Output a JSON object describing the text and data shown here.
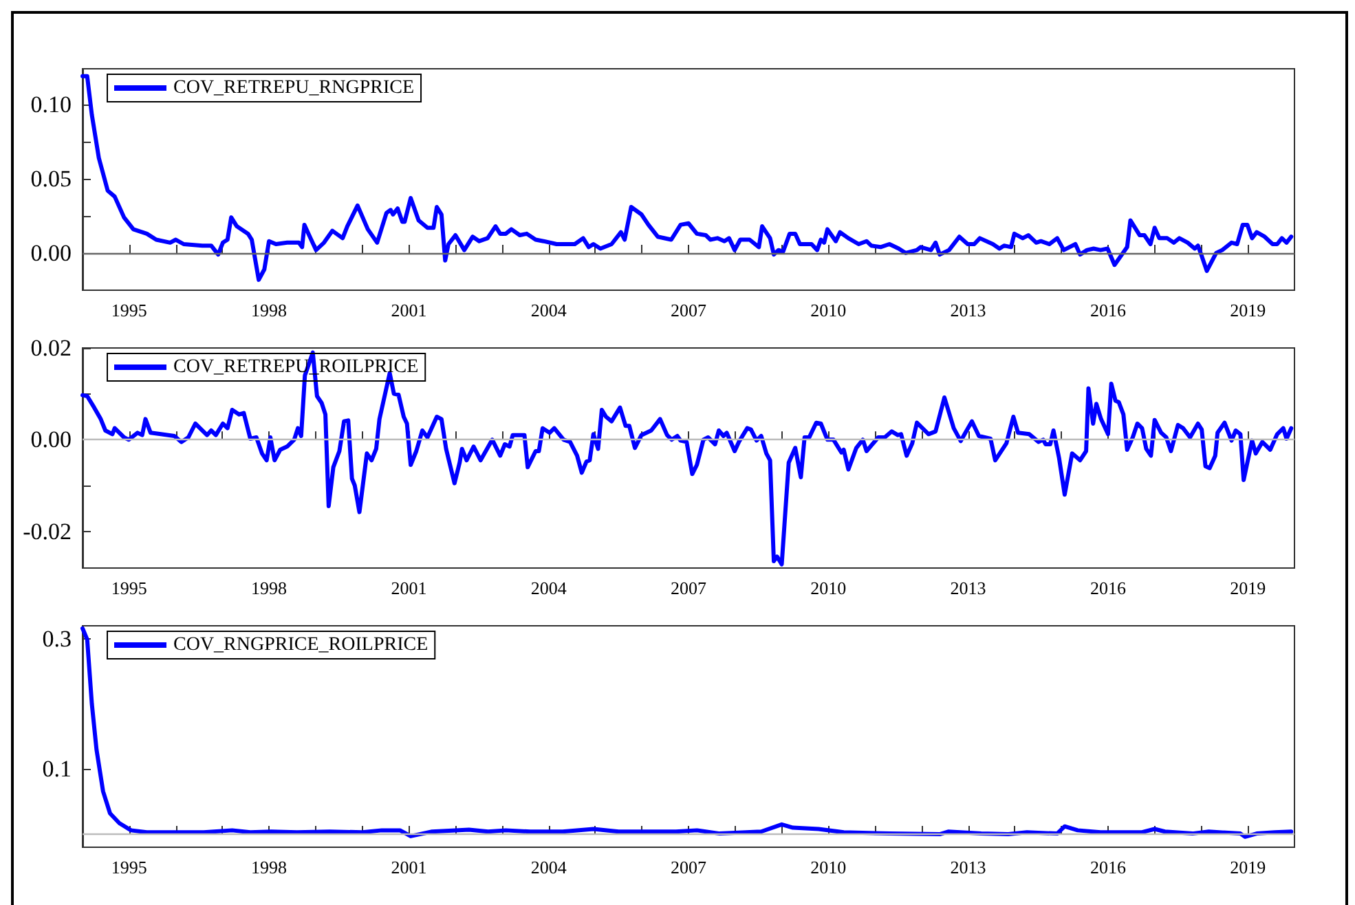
{
  "chart_data": [
    {
      "type": "line",
      "legend": "top left",
      "grid": false,
      "xlim": [
        1994,
        2020
      ],
      "ylim": [
        -0.025,
        0.124
      ],
      "xticks": [
        1995,
        {
          "value": 1996,
          "label": null
        },
        {
          "value": 1997,
          "label": null
        },
        1998,
        {
          "value": 1999,
          "label": null
        },
        {
          "value": 2000,
          "label": null
        },
        2001,
        {
          "value": 2002,
          "label": null
        },
        {
          "value": 2003,
          "label": null
        },
        2004,
        {
          "value": 2005,
          "label": null
        },
        {
          "value": 2006,
          "label": null
        },
        2007,
        {
          "value": 2008,
          "label": null
        },
        {
          "value": 2009,
          "label": null
        },
        2010,
        {
          "value": 2011,
          "label": null
        },
        {
          "value": 2012,
          "label": null
        },
        2013,
        {
          "value": 2014,
          "label": null
        },
        {
          "value": 2015,
          "label": null
        },
        2016,
        {
          "value": 2017,
          "label": null
        },
        {
          "value": 2018,
          "label": null
        },
        2019
      ],
      "yticks": [
        {
          "value": 0,
          "label": "0.00"
        },
        {
          "value": 0.025,
          "label": null
        },
        {
          "value": 0.05,
          "label": "0.05"
        },
        {
          "value": 0.075,
          "label": null
        },
        {
          "value": 0.1,
          "label": "0.10"
        }
      ],
      "ref_lines": [
        {
          "axis": "y",
          "value": 0,
          "color": "#666666"
        }
      ],
      "series": [
        {
          "name": "COV_RETREPU_RNGPRICE",
          "color": "#0000ff",
          "x": [
            1994.0,
            1994.1,
            1994.2,
            1994.35,
            1994.54,
            1994.69,
            1994.89,
            1995.09,
            1995.38,
            1995.58,
            1995.88,
            1996.0,
            1996.17,
            1996.57,
            1996.76,
            1996.91,
            1997.01,
            1997.11,
            1997.19,
            1997.31,
            1997.55,
            1997.63,
            1997.78,
            1997.9,
            1998.0,
            1998.15,
            1998.39,
            1998.64,
            1998.71,
            1998.76,
            1998.89,
            1999.01,
            1999.18,
            1999.36,
            1999.58,
            1999.68,
            1999.9,
            2000.12,
            2000.32,
            2000.52,
            2000.61,
            2000.66,
            2000.76,
            2000.86,
            2000.91,
            2001.04,
            2001.21,
            2001.4,
            2001.53,
            2001.6,
            2001.7,
            2001.78,
            2001.85,
            2002.0,
            2002.19,
            2002.37,
            2002.51,
            2002.69,
            2002.86,
            2002.96,
            2003.08,
            2003.2,
            2003.38,
            2003.53,
            2003.72,
            2003.89,
            2004.17,
            2004.56,
            2004.74,
            2004.86,
            2004.96,
            2005.11,
            2005.35,
            2005.55,
            2005.63,
            2005.77,
            2005.99,
            2006.14,
            2006.34,
            2006.63,
            2006.83,
            2007.0,
            2007.18,
            2007.37,
            2007.47,
            2007.62,
            2007.77,
            2007.87,
            2007.99,
            2008.11,
            2008.31,
            2008.51,
            2008.58,
            2008.75,
            2008.83,
            2008.93,
            2009.03,
            2009.17,
            2009.29,
            2009.39,
            2009.64,
            2009.76,
            2009.84,
            2009.91,
            2009.98,
            2010.16,
            2010.25,
            2010.43,
            2010.65,
            2010.82,
            2010.92,
            2011.12,
            2011.31,
            2011.51,
            2011.66,
            2011.9,
            2011.98,
            2012.2,
            2012.3,
            2012.39,
            2012.59,
            2012.81,
            2012.99,
            2013.13,
            2013.25,
            2013.53,
            2013.67,
            2013.77,
            2013.92,
            2013.99,
            2014.17,
            2014.29,
            2014.46,
            2014.56,
            2014.74,
            2014.91,
            2015.05,
            2015.3,
            2015.4,
            2015.55,
            2015.69,
            2015.84,
            2015.99,
            2016.14,
            2016.41,
            2016.48,
            2016.68,
            2016.78,
            2016.91,
            2017.0,
            2017.1,
            2017.27,
            2017.41,
            2017.53,
            2017.71,
            2017.86,
            2017.93,
            2018.01,
            2018.12,
            2018.32,
            2018.45,
            2018.65,
            2018.77,
            2018.89,
            2018.99,
            2019.09,
            2019.19,
            2019.36,
            2019.53,
            2019.63,
            2019.73,
            2019.83,
            2019.93
          ],
          "values": [
            0.119,
            0.119,
            0.093,
            0.064,
            0.042,
            0.038,
            0.024,
            0.016,
            0.013,
            0.009,
            0.007,
            0.009,
            0.006,
            0.005,
            0.005,
            -0.001,
            0.007,
            0.009,
            0.024,
            0.018,
            0.013,
            0.009,
            -0.018,
            -0.011,
            0.008,
            0.006,
            0.007,
            0.007,
            0.004,
            0.019,
            0.01,
            0.002,
            0.007,
            0.015,
            0.01,
            0.018,
            0.032,
            0.016,
            0.007,
            0.027,
            0.029,
            0.026,
            0.03,
            0.021,
            0.021,
            0.037,
            0.022,
            0.017,
            0.017,
            0.031,
            0.026,
            -0.005,
            0.006,
            0.012,
            0.002,
            0.011,
            0.008,
            0.01,
            0.018,
            0.013,
            0.013,
            0.016,
            0.012,
            0.013,
            0.009,
            0.008,
            0.006,
            0.006,
            0.01,
            0.004,
            0.006,
            0.003,
            0.006,
            0.014,
            0.009,
            0.031,
            0.026,
            0.019,
            0.011,
            0.009,
            0.019,
            0.02,
            0.013,
            0.012,
            0.009,
            0.01,
            0.008,
            0.01,
            0.002,
            0.009,
            0.009,
            0.004,
            0.018,
            0.01,
            -0.001,
            0.002,
            0.001,
            0.013,
            0.013,
            0.006,
            0.006,
            0.002,
            0.009,
            0.007,
            0.016,
            0.008,
            0.014,
            0.01,
            0.006,
            0.008,
            0.005,
            0.004,
            0.006,
            0.003,
            0.0,
            0.002,
            0.004,
            0.002,
            0.007,
            -0.001,
            0.002,
            0.011,
            0.006,
            0.006,
            0.01,
            0.006,
            0.003,
            0.005,
            0.004,
            0.013,
            0.01,
            0.012,
            0.007,
            0.008,
            0.006,
            0.01,
            0.002,
            0.006,
            -0.001,
            0.002,
            0.003,
            0.002,
            0.003,
            -0.008,
            0.004,
            0.022,
            0.012,
            0.012,
            0.006,
            0.017,
            0.01,
            0.01,
            0.007,
            0.01,
            0.007,
            0.003,
            0.005,
            -0.002,
            -0.012,
            0.0,
            0.002,
            0.007,
            0.006,
            0.019,
            0.019,
            0.01,
            0.014,
            0.011,
            0.006,
            0.006,
            0.01,
            0.007,
            0.011
          ]
        }
      ]
    },
    {
      "type": "line",
      "legend": "top left",
      "grid": false,
      "xlim": [
        1994,
        2020
      ],
      "ylim": [
        -0.028,
        0.02
      ],
      "xticks": [
        1995,
        {
          "value": 1996,
          "label": null
        },
        {
          "value": 1997,
          "label": null
        },
        1998,
        {
          "value": 1999,
          "label": null
        },
        {
          "value": 2000,
          "label": null
        },
        2001,
        {
          "value": 2002,
          "label": null
        },
        {
          "value": 2003,
          "label": null
        },
        2004,
        {
          "value": 2005,
          "label": null
        },
        {
          "value": 2006,
          "label": null
        },
        2007,
        {
          "value": 2008,
          "label": null
        },
        {
          "value": 2009,
          "label": null
        },
        2010,
        {
          "value": 2011,
          "label": null
        },
        {
          "value": 2012,
          "label": null
        },
        2013,
        {
          "value": 2014,
          "label": null
        },
        {
          "value": 2015,
          "label": null
        },
        2016,
        {
          "value": 2017,
          "label": null
        },
        {
          "value": 2018,
          "label": null
        },
        2019
      ],
      "yticks": [
        {
          "value": -0.02,
          "label": "-0.02"
        },
        {
          "value": -0.01,
          "label": null
        },
        {
          "value": 0,
          "label": "0.00"
        },
        {
          "value": 0.01,
          "label": null
        },
        {
          "value": 0.02,
          "label": "0.02"
        }
      ],
      "ref_lines": [
        {
          "axis": "y",
          "value": 0,
          "color": "#bbbbbb"
        }
      ],
      "series": [
        {
          "name": "COV_RETREPU_ROILPRICE",
          "color": "#0000ff",
          "x": [
            1994.0,
            1994.1,
            1994.25,
            1994.39,
            1994.49,
            1994.64,
            1994.69,
            1994.89,
            1994.99,
            1995.18,
            1995.28,
            1995.35,
            1995.46,
            1995.68,
            1995.97,
            1996.12,
            1996.27,
            1996.42,
            1996.67,
            1996.76,
            1996.86,
            1997.01,
            1997.11,
            1997.21,
            1997.36,
            1997.46,
            1997.6,
            1997.73,
            1997.85,
            1997.95,
            1998.03,
            1998.12,
            1998.24,
            1998.39,
            1998.54,
            1998.62,
            1998.69,
            1998.77,
            1998.94,
            1999.03,
            1999.13,
            1999.21,
            1999.28,
            1999.38,
            1999.51,
            1999.61,
            1999.7,
            1999.78,
            1999.84,
            1999.94,
            2000.1,
            2000.2,
            2000.3,
            2000.37,
            2000.59,
            2000.68,
            2000.78,
            2000.89,
            2000.96,
            2001.04,
            2001.16,
            2001.29,
            2001.4,
            2001.6,
            2001.7,
            2001.8,
            2001.98,
            2002.09,
            2002.14,
            2002.24,
            2002.39,
            2002.54,
            2002.79,
            2002.96,
            2003.06,
            2003.16,
            2003.23,
            2003.48,
            2003.55,
            2003.72,
            2003.79,
            2003.87,
            2004.02,
            2004.12,
            2004.32,
            2004.46,
            2004.61,
            2004.71,
            2004.81,
            2004.88,
            2004.96,
            2005.06,
            2005.14,
            2005.23,
            2005.35,
            2005.53,
            2005.65,
            2005.73,
            2005.85,
            2005.99,
            2006.2,
            2006.39,
            2006.54,
            2006.64,
            2006.76,
            2006.83,
            2006.96,
            2007.08,
            2007.18,
            2007.32,
            2007.42,
            2007.57,
            2007.65,
            2007.75,
            2007.82,
            2007.99,
            2008.08,
            2008.26,
            2008.34,
            2008.46,
            2008.56,
            2008.67,
            2008.75,
            2008.83,
            2008.9,
            2009.0,
            2009.15,
            2009.29,
            2009.41,
            2009.49,
            2009.59,
            2009.74,
            2009.84,
            2009.98,
            2010.11,
            2010.28,
            2010.33,
            2010.43,
            2010.6,
            2010.74,
            2010.82,
            2011.07,
            2011.21,
            2011.36,
            2011.49,
            2011.56,
            2011.68,
            2011.8,
            2011.9,
            2012.15,
            2012.3,
            2012.49,
            2012.69,
            2012.84,
            2012.94,
            2013.08,
            2013.23,
            2013.48,
            2013.58,
            2013.82,
            2013.97,
            2014.07,
            2014.31,
            2014.51,
            2014.61,
            2014.66,
            2014.76,
            2014.83,
            2014.95,
            2015.07,
            2015.23,
            2015.4,
            2015.53,
            2015.58,
            2015.68,
            2015.75,
            2015.85,
            2016.0,
            2016.07,
            2016.16,
            2016.23,
            2016.33,
            2016.41,
            2016.53,
            2016.63,
            2016.73,
            2016.82,
            2016.92,
            2017.0,
            2017.14,
            2017.25,
            2017.35,
            2017.5,
            2017.61,
            2017.76,
            2017.93,
            2018.01,
            2018.09,
            2018.18,
            2018.3,
            2018.35,
            2018.5,
            2018.65,
            2018.74,
            2018.84,
            2018.91,
            2019.09,
            2019.17,
            2019.31,
            2019.48,
            2019.63,
            2019.76,
            2019.83,
            2019.93
          ],
          "values": [
            0.0097,
            0.0095,
            0.007,
            0.0045,
            0.002,
            0.0012,
            0.0025,
            0.0005,
            0.0,
            0.0015,
            0.001,
            0.0045,
            0.0015,
            0.0012,
            0.0008,
            -0.0005,
            0.0005,
            0.0035,
            0.001,
            0.002,
            0.001,
            0.0035,
            0.0025,
            0.0065,
            0.0055,
            0.0058,
            0.0002,
            0.0005,
            -0.003,
            -0.0045,
            0.0005,
            -0.0045,
            -0.0022,
            -0.0015,
            0.0,
            0.0025,
            0.0008,
            0.014,
            0.019,
            0.0095,
            0.008,
            0.0055,
            -0.0145,
            -0.006,
            -0.0025,
            0.004,
            0.0042,
            -0.0085,
            -0.01,
            -0.0158,
            -0.003,
            -0.0045,
            -0.002,
            0.0045,
            0.0145,
            0.01,
            0.0098,
            0.005,
            0.0035,
            -0.0055,
            -0.0025,
            0.002,
            0.0005,
            0.005,
            0.0045,
            -0.002,
            -0.0095,
            -0.005,
            -0.002,
            -0.0045,
            -0.0015,
            -0.0045,
            0.0,
            -0.0035,
            -0.001,
            -0.0015,
            0.001,
            0.001,
            -0.006,
            -0.0025,
            -0.0025,
            0.0025,
            0.0015,
            0.0025,
            0.0,
            -0.0005,
            -0.0035,
            -0.0072,
            -0.0048,
            -0.0045,
            0.0012,
            -0.002,
            0.0065,
            0.005,
            0.004,
            0.007,
            0.003,
            0.003,
            -0.0018,
            0.001,
            0.002,
            0.0045,
            0.001,
            0.0,
            0.0008,
            -0.0002,
            -0.0005,
            -0.0075,
            -0.0055,
            0.0,
            0.0005,
            -0.001,
            0.002,
            0.0008,
            0.0015,
            -0.0025,
            -0.0005,
            0.0025,
            0.0022,
            -0.0002,
            0.0008,
            -0.003,
            -0.0045,
            -0.0265,
            -0.0255,
            -0.0272,
            -0.005,
            -0.0018,
            -0.0082,
            0.0005,
            0.0005,
            0.0037,
            0.0035,
            0.0,
            0.0,
            -0.0028,
            -0.0022,
            -0.0065,
            -0.0018,
            0.0,
            -0.0025,
            0.0005,
            0.0005,
            0.0018,
            0.001,
            0.0012,
            -0.0035,
            -0.0008,
            0.0037,
            0.0012,
            0.0018,
            0.0092,
            0.0025,
            -0.0003,
            0.0015,
            0.004,
            0.0008,
            0.0002,
            -0.0045,
            -0.0008,
            0.005,
            0.0015,
            0.0012,
            -0.0005,
            0.0,
            -0.001,
            -0.001,
            0.002,
            -0.004,
            -0.012,
            -0.003,
            -0.0045,
            -0.0025,
            0.0112,
            0.0035,
            0.0078,
            0.0045,
            0.0012,
            0.0122,
            0.0085,
            0.0082,
            0.0055,
            -0.0022,
            0.0005,
            0.0035,
            0.0025,
            -0.002,
            -0.0035,
            0.0043,
            0.0015,
            0.0005,
            -0.0025,
            0.0032,
            0.0025,
            0.0005,
            0.0035,
            0.0022,
            -0.0058,
            -0.0062,
            -0.0035,
            0.0015,
            0.0037,
            -0.0002,
            0.002,
            0.0012,
            -0.0088,
            -0.0002,
            -0.003,
            -0.0005,
            -0.0022,
            0.0012,
            0.0025,
            0.0002,
            0.0025
          ]
        }
      ]
    },
    {
      "type": "line",
      "legend": "top left",
      "grid": false,
      "xlim": [
        1994,
        2020
      ],
      "ylim": [
        -0.02,
        0.32
      ],
      "xticks": [
        1995,
        {
          "value": 1996,
          "label": null
        },
        {
          "value": 1997,
          "label": null
        },
        1998,
        {
          "value": 1999,
          "label": null
        },
        {
          "value": 2000,
          "label": null
        },
        2001,
        {
          "value": 2002,
          "label": null
        },
        {
          "value": 2003,
          "label": null
        },
        2004,
        {
          "value": 2005,
          "label": null
        },
        {
          "value": 2006,
          "label": null
        },
        2007,
        {
          "value": 2008,
          "label": null
        },
        {
          "value": 2009,
          "label": null
        },
        2010,
        {
          "value": 2011,
          "label": null
        },
        {
          "value": 2012,
          "label": null
        },
        2013,
        {
          "value": 2014,
          "label": null
        },
        {
          "value": 2015,
          "label": null
        },
        2016,
        {
          "value": 2017,
          "label": null
        },
        {
          "value": 2018,
          "label": null
        },
        2019
      ],
      "yticks": [
        0.1,
        0.3
      ],
      "ref_lines": [
        {
          "axis": "y",
          "value": 0,
          "color": "#bbbbbb"
        }
      ],
      "series": [
        {
          "name": "COV_RNGPRICE_ROILPRICE",
          "color": "#0000ff",
          "x": [
            1994.0,
            1994.1,
            1994.2,
            1994.3,
            1994.44,
            1994.59,
            1994.79,
            1995.04,
            1995.38,
            1996.0,
            1996.6,
            1997.21,
            1997.6,
            1998.05,
            1998.6,
            1999.3,
            2000.0,
            2000.42,
            2000.81,
            2001.04,
            2001.5,
            2002.29,
            2002.7,
            2003.08,
            2003.6,
            2004.3,
            2004.96,
            2005.5,
            2006.2,
            2006.73,
            2007.18,
            2007.67,
            2008.56,
            2009.0,
            2009.24,
            2009.79,
            2010.33,
            2011.31,
            2012.39,
            2012.57,
            2013.28,
            2013.86,
            2014.26,
            2014.91,
            2015.07,
            2015.35,
            2015.84,
            2016.73,
            2017.0,
            2017.22,
            2017.81,
            2018.16,
            2018.84,
            2018.94,
            2019.19,
            2019.58,
            2019.93
          ],
          "values": [
            0.316,
            0.299,
            0.2,
            0.13,
            0.066,
            0.032,
            0.017,
            0.006,
            0.003,
            0.003,
            0.003,
            0.006,
            0.003,
            0.004,
            0.003,
            0.004,
            0.003,
            0.006,
            0.006,
            -0.003,
            0.004,
            0.007,
            0.004,
            0.006,
            0.004,
            0.004,
            0.008,
            0.004,
            0.004,
            0.004,
            0.006,
            0.001,
            0.004,
            0.015,
            0.01,
            0.008,
            0.003,
            0.001,
            0.0,
            0.004,
            0.001,
            0.0,
            0.003,
            0.001,
            0.012,
            0.006,
            0.003,
            0.003,
            0.008,
            0.004,
            0.001,
            0.004,
            0.001,
            -0.004,
            0.001,
            0.003,
            0.004
          ]
        }
      ]
    }
  ]
}
